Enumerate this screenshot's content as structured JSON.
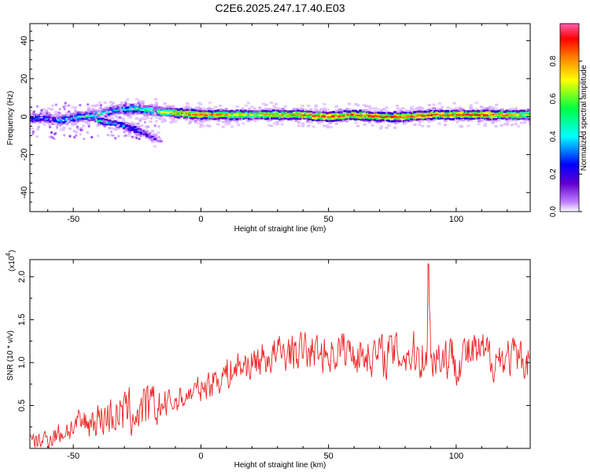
{
  "figure": {
    "title": "C2E6.2025.247.17.40.E03"
  },
  "chart_data": [
    {
      "type": "heatmap",
      "title": "C2E6.2025.247.17.40.E03",
      "xlabel": "Height of straight line (km)",
      "ylabel": "Frequency (Hz)",
      "xlim": [
        -67,
        129
      ],
      "ylim": [
        -50,
        49
      ],
      "xticks": [
        -50,
        0,
        50,
        100
      ],
      "yticks": [
        40,
        20,
        0,
        -20,
        -40
      ],
      "xtick_labels": [
        "-50",
        "0",
        "50",
        "100"
      ],
      "ytick_labels": [
        "40",
        "20",
        "0",
        "-20",
        "-40"
      ],
      "colorbar": {
        "label": "Normalized spectral amplitude",
        "range": [
          0,
          1
        ],
        "ticks": [
          0.0,
          0.2,
          0.4,
          0.6,
          0.8
        ],
        "tick_labels": [
          "0.0",
          "0.2",
          "0.4",
          "0.6",
          "0.8"
        ],
        "colors": [
          "#ffffff",
          "#c080ff",
          "#6000d0",
          "#0000ff",
          "#00ffff",
          "#00ff40",
          "#ffff00",
          "#ff8000",
          "#ff0000",
          "#ff60b0"
        ]
      },
      "ridge": [
        {
          "x": -62,
          "freq": -1,
          "amp": 0.35
        },
        {
          "x": -55,
          "freq": -2,
          "amp": 0.4
        },
        {
          "x": -48,
          "freq": 0,
          "amp": 0.45
        },
        {
          "x": -40,
          "freq": 1,
          "amp": 0.5
        },
        {
          "x": -32,
          "freq": 4,
          "amp": 0.45
        },
        {
          "x": -25,
          "freq": 4,
          "amp": 0.5
        },
        {
          "x": -18,
          "freq": 3,
          "amp": 0.55
        },
        {
          "x": -10,
          "freq": 2,
          "amp": 0.75
        },
        {
          "x": 0,
          "freq": 1,
          "amp": 0.8
        },
        {
          "x": 10,
          "freq": 1,
          "amp": 0.75
        },
        {
          "x": 20,
          "freq": 1,
          "amp": 0.7
        },
        {
          "x": 30,
          "freq": 1,
          "amp": 0.75
        },
        {
          "x": 40,
          "freq": 1,
          "amp": 0.8
        },
        {
          "x": 50,
          "freq": 0,
          "amp": 0.85
        },
        {
          "x": 60,
          "freq": 1,
          "amp": 0.8
        },
        {
          "x": 70,
          "freq": 0,
          "amp": 0.85
        },
        {
          "x": 80,
          "freq": 0,
          "amp": 0.8
        },
        {
          "x": 90,
          "freq": 1,
          "amp": 0.85
        },
        {
          "x": 100,
          "freq": 1,
          "amp": 0.8
        },
        {
          "x": 110,
          "freq": 1,
          "amp": 0.85
        },
        {
          "x": 120,
          "freq": 1,
          "amp": 0.75
        },
        {
          "x": 128,
          "freq": 1,
          "amp": 0.7
        }
      ],
      "branch": [
        {
          "x": -40,
          "freq": -2,
          "amp": 0.45
        },
        {
          "x": -32,
          "freq": -4,
          "amp": 0.4
        },
        {
          "x": -25,
          "freq": -7,
          "amp": 0.35
        },
        {
          "x": -20,
          "freq": -10,
          "amp": 0.25
        },
        {
          "x": -16,
          "freq": -13,
          "amp": 0.1
        }
      ]
    },
    {
      "type": "line",
      "xlabel": "Height of straight line (km)",
      "ylabel": "SNR (10 * v/v)",
      "y_multiplier_label": "(x10",
      "y_multiplier_exponent": "4",
      "xlim": [
        -67,
        129
      ],
      "ylim": [
        0,
        2.2
      ],
      "xticks": [
        -50,
        0,
        50,
        100
      ],
      "yticks": [
        0.5,
        1.0,
        1.5,
        2.0
      ],
      "xtick_labels": [
        "-50",
        "0",
        "50",
        "100"
      ],
      "ytick_labels": [
        "0.5",
        "1.0",
        "1.5",
        "2.0"
      ],
      "line_color": "#ee2222",
      "series": [
        {
          "name": "SNR",
          "x": [
            -67,
            -60,
            -55,
            -50,
            -45,
            -40,
            -35,
            -30,
            -25,
            -20,
            -15,
            -10,
            -5,
            0,
            5,
            10,
            15,
            20,
            25,
            30,
            35,
            40,
            45,
            50,
            55,
            60,
            65,
            70,
            75,
            80,
            85,
            90,
            95,
            100,
            105,
            110,
            115,
            120,
            125,
            129
          ],
          "mean": [
            0.05,
            0.12,
            0.18,
            0.25,
            0.3,
            0.35,
            0.4,
            0.4,
            0.42,
            0.45,
            0.5,
            0.55,
            0.62,
            0.7,
            0.8,
            0.88,
            0.95,
            1.0,
            1.05,
            1.1,
            1.12,
            1.13,
            1.12,
            1.1,
            1.15,
            1.12,
            1.1,
            1.08,
            1.12,
            1.1,
            1.1,
            1.12,
            1.08,
            1.05,
            1.1,
            1.08,
            1.05,
            1.06,
            1.02,
            1.05
          ],
          "spread": [
            0.15,
            0.18,
            0.2,
            0.22,
            0.28,
            0.32,
            0.35,
            0.4,
            0.42,
            0.42,
            0.3,
            0.22,
            0.2,
            0.22,
            0.28,
            0.3,
            0.3,
            0.3,
            0.32,
            0.32,
            0.32,
            0.32,
            0.32,
            0.3,
            0.35,
            0.35,
            0.35,
            0.35,
            0.38,
            0.38,
            0.4,
            0.42,
            0.42,
            0.4,
            0.38,
            0.38,
            0.35,
            0.35,
            0.35,
            0.35
          ]
        }
      ],
      "peak": {
        "x": 89,
        "y": 2.15
      }
    }
  ]
}
